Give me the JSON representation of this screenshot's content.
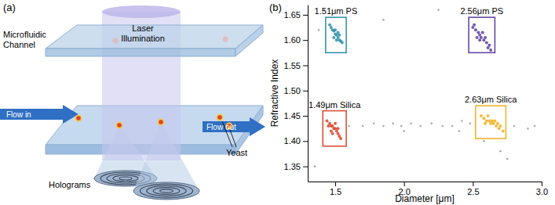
{
  "diagram": {
    "panel_label": "(a)",
    "channel": [
      "Microfluidic",
      "Channel"
    ],
    "laser": [
      "Laser",
      "Illumination"
    ],
    "flow_in": "Flow in",
    "flow_out": "Flow out",
    "yeast": "Yeast",
    "holograms": "Holograms"
  },
  "chart_data": {
    "type": "scatter",
    "panel_label": "(b)",
    "x_label": "Diameter [μm]",
    "y_label": "Refractive Index",
    "xlim": [
      1.3,
      3.0
    ],
    "ylim": [
      1.32,
      1.67
    ],
    "xticks": [
      1.5,
      {
        "value": 2.0,
        "label": "2.0"
      },
      2.5,
      {
        "value": 3.0,
        "label": "3.0"
      }
    ],
    "yticks": [
      1.35,
      {
        "value": 1.4,
        "label": "1.40"
      },
      1.45,
      {
        "value": 1.5,
        "label": "1.50"
      },
      1.55,
      {
        "value": 1.6,
        "label": "1.60"
      },
      1.65
    ],
    "marker": "circle",
    "series": [
      {
        "color": "#999999",
        "x": [
          1.6,
          1.7,
          1.78,
          1.85,
          1.92,
          1.98,
          2.05,
          2.12,
          2.2,
          2.28,
          2.35,
          2.42,
          2.48,
          2.8,
          2.9,
          2.95,
          2.4,
          2.58,
          2.7,
          2.75,
          1.35,
          1.38,
          1.42,
          2.25,
          1.85,
          2.0
        ],
        "values": [
          1.43,
          1.43,
          1.435,
          1.43,
          1.435,
          1.43,
          1.435,
          1.43,
          1.435,
          1.43,
          1.43,
          1.44,
          1.435,
          1.43,
          1.425,
          1.43,
          1.42,
          1.4,
          1.38,
          1.365,
          1.35,
          1.62,
          1.66,
          1.66,
          1.64,
          1.42
        ]
      },
      {
        "color": "#2a8fa8",
        "x": [
          1.47,
          1.48,
          1.49,
          1.5,
          1.51,
          1.52,
          1.53,
          1.54,
          1.5,
          1.52,
          1.49,
          1.53,
          1.55,
          1.46,
          1.51
        ],
        "values": [
          1.625,
          1.62,
          1.618,
          1.612,
          1.61,
          1.605,
          1.6,
          1.598,
          1.62,
          1.615,
          1.605,
          1.61,
          1.595,
          1.63,
          1.6
        ]
      },
      {
        "color": "#5a3fa0",
        "x": [
          2.5,
          2.52,
          2.54,
          2.55,
          2.56,
          2.58,
          2.6,
          2.62,
          2.53,
          2.57,
          2.59,
          2.61,
          2.51,
          2.55,
          2.63
        ],
        "values": [
          1.625,
          1.62,
          1.615,
          1.61,
          1.605,
          1.6,
          1.595,
          1.59,
          1.605,
          1.615,
          1.605,
          1.585,
          1.63,
          1.6,
          1.58
        ]
      },
      {
        "color": "#d9452b",
        "x": [
          1.44,
          1.46,
          1.47,
          1.48,
          1.49,
          1.5,
          1.51,
          1.52,
          1.53,
          1.47,
          1.5,
          1.45,
          1.52,
          1.48,
          1.54
        ],
        "values": [
          1.44,
          1.435,
          1.43,
          1.43,
          1.425,
          1.425,
          1.42,
          1.415,
          1.41,
          1.42,
          1.435,
          1.43,
          1.425,
          1.415,
          1.405
        ]
      },
      {
        "color": "#f0b020",
        "x": [
          2.56,
          2.58,
          2.6,
          2.62,
          2.63,
          2.65,
          2.67,
          2.69,
          2.61,
          2.64,
          2.66,
          2.7,
          2.59,
          2.68,
          2.72
        ],
        "values": [
          1.45,
          1.445,
          1.44,
          1.44,
          1.435,
          1.435,
          1.43,
          1.425,
          1.45,
          1.44,
          1.44,
          1.43,
          1.435,
          1.435,
          1.42
        ]
      }
    ],
    "boxes": [
      {
        "label": "1.51μm PS",
        "color": "#2a8fa8",
        "x": [
          1.43,
          1.58
        ],
        "y": [
          1.575,
          1.645
        ]
      },
      {
        "label": "2.56μm PS",
        "color": "#5a3fa0",
        "x": [
          2.47,
          2.66
        ],
        "y": [
          1.575,
          1.645
        ]
      },
      {
        "label": "1.49μm Silica",
        "color": "#d9452b",
        "x": [
          1.41,
          1.58
        ],
        "y": [
          1.39,
          1.46
        ]
      },
      {
        "label": "2.63μm Silica",
        "color": "#f0b020",
        "x": [
          2.52,
          2.74
        ],
        "y": [
          1.405,
          1.47
        ]
      }
    ]
  }
}
